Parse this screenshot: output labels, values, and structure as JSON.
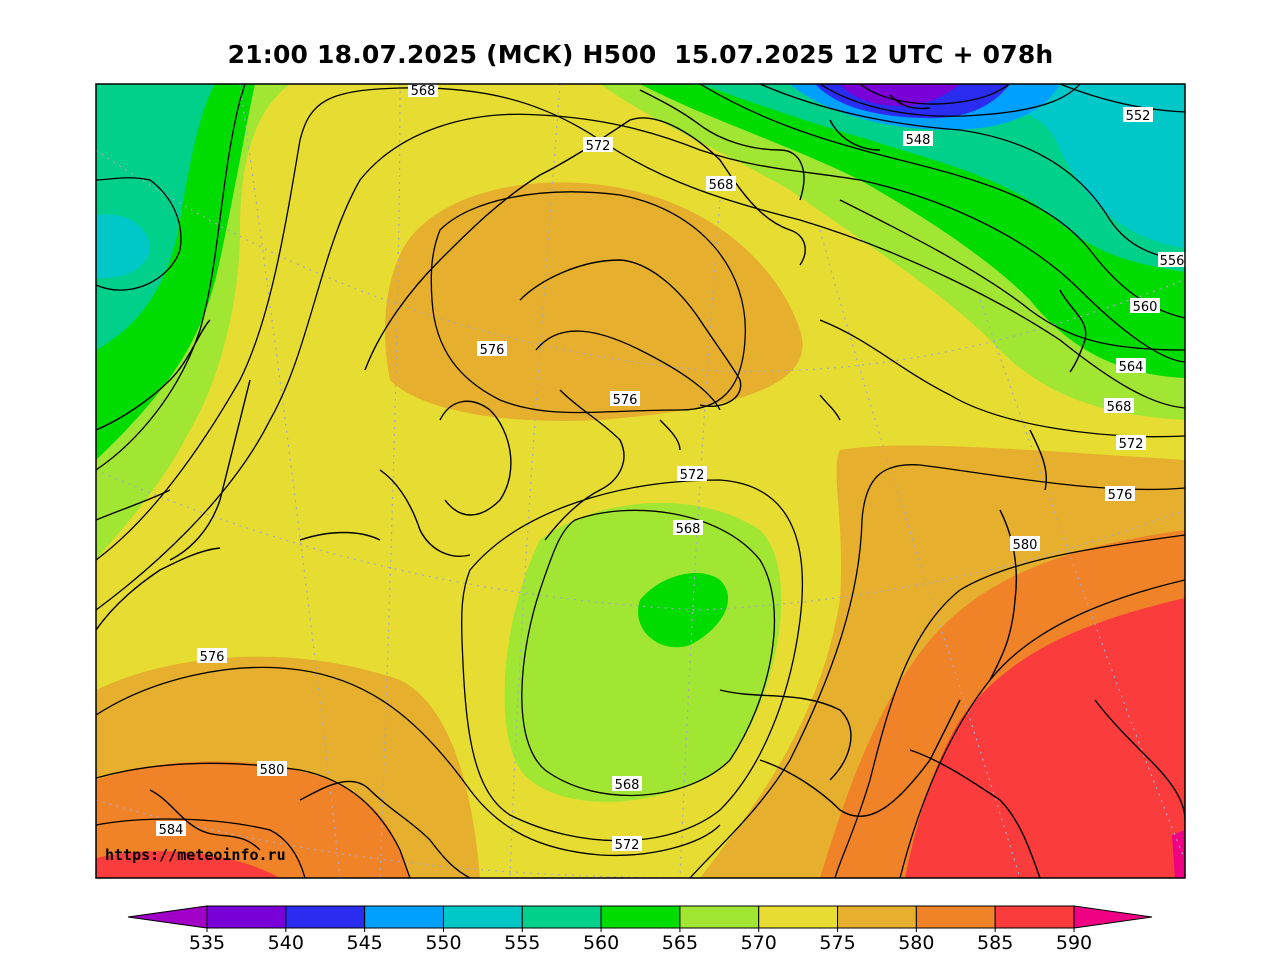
{
  "title": "21:00 18.07.2025 (МСК) H500  15.07.2025 12 UTC + 078h",
  "watermark": "https://meteoinfo.ru",
  "colorbar": {
    "ticks": [
      "535",
      "540",
      "545",
      "550",
      "555",
      "560",
      "565",
      "570",
      "575",
      "580",
      "585",
      "590"
    ],
    "colors": [
      "#7a00d8",
      "#2a2cf0",
      "#00a0ff",
      "#00c8c8",
      "#00d08a",
      "#00dc00",
      "#a0e632",
      "#e6dc32",
      "#e6af2d",
      "#f08228",
      "#fa3c3c",
      "#f00082"
    ],
    "under_color": "#a000c8",
    "over_color": "#f00082"
  },
  "contour_labels": [
    {
      "text": "568",
      "id": "lbl-568-top"
    },
    {
      "text": "572",
      "id": "lbl-572-top"
    },
    {
      "text": "568",
      "id": "lbl-568-north"
    },
    {
      "text": "548",
      "id": "lbl-548"
    },
    {
      "text": "552",
      "id": "lbl-552"
    },
    {
      "text": "556",
      "id": "lbl-556"
    },
    {
      "text": "560",
      "id": "lbl-560"
    },
    {
      "text": "564",
      "id": "lbl-564"
    },
    {
      "text": "568",
      "id": "lbl-568-east"
    },
    {
      "text": "572",
      "id": "lbl-572-east"
    },
    {
      "text": "576",
      "id": "lbl-576-east"
    },
    {
      "text": "580",
      "id": "lbl-580-east"
    },
    {
      "text": "576",
      "id": "lbl-576-scand"
    },
    {
      "text": "576",
      "id": "lbl-576-finland"
    },
    {
      "text": "572",
      "id": "lbl-572-center"
    },
    {
      "text": "568",
      "id": "lbl-568-center"
    },
    {
      "text": "568",
      "id": "lbl-568-south"
    },
    {
      "text": "572",
      "id": "lbl-572-south"
    },
    {
      "text": "576",
      "id": "lbl-576-west"
    },
    {
      "text": "580",
      "id": "lbl-580-west"
    },
    {
      "text": "584",
      "id": "lbl-584-west"
    }
  ]
}
